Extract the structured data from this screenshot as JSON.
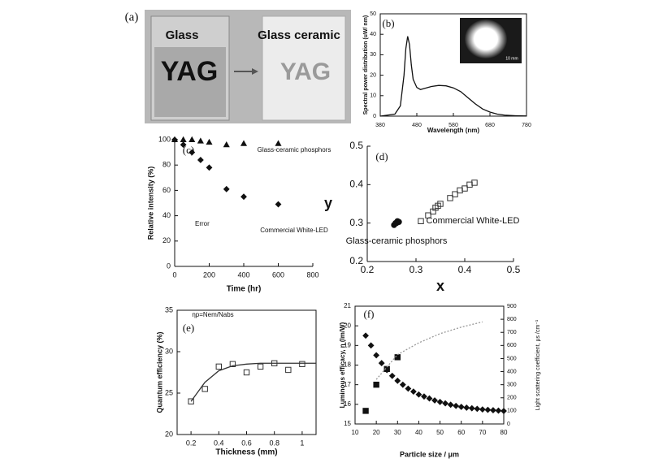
{
  "photo": {
    "label": "(a)",
    "left_caption": "Glass",
    "left_text": "YAG",
    "right_caption": "Glass ceramic",
    "right_text": "YAG"
  },
  "chart_data": [
    {
      "type": "line",
      "title": "(b)",
      "xlabel": "Wavelength (nm)",
      "ylabel": "Spectral power distribution (uW/ nm)",
      "inset_label": "10 mm",
      "xlim": [
        380,
        780
      ],
      "xticks": [
        380,
        480,
        580,
        680,
        780
      ],
      "ylim": [
        0,
        50
      ],
      "yticks": [
        0,
        10,
        20,
        30,
        40,
        50
      ],
      "x": [
        380,
        420,
        435,
        445,
        450,
        455,
        460,
        465,
        470,
        480,
        490,
        500,
        520,
        540,
        560,
        580,
        600,
        620,
        640,
        660,
        680,
        700,
        720,
        750,
        780
      ],
      "series": [
        {
          "color": "#111111",
          "values": [
            0,
            1,
            5,
            20,
            33,
            39,
            35,
            25,
            18,
            14,
            13,
            13.5,
            14.5,
            15,
            14.8,
            13.8,
            12,
            9,
            6,
            3.5,
            2,
            1,
            0.5,
            0.2,
            0.1
          ]
        }
      ]
    },
    {
      "type": "scatter",
      "title": "(c)",
      "xlabel": "Time (hr)",
      "ylabel": "Relative intensity (%)",
      "annotations": [
        "Glass-ceramic phosphors",
        "Commercial White-LED",
        "Error"
      ],
      "xlim": [
        0,
        800
      ],
      "xticks": [
        0,
        200,
        400,
        600,
        800
      ],
      "ylim": [
        0,
        100
      ],
      "yticks": [
        0,
        20,
        40,
        60,
        80,
        100
      ],
      "x": [
        0,
        50,
        100,
        150,
        200,
        300,
        400,
        600
      ],
      "series": [
        {
          "marker": "triangle",
          "color": "#111111",
          "values": [
            100,
            100,
            100,
            99,
            98,
            96,
            97,
            97
          ]
        },
        {
          "marker": "diamond",
          "color": "#111111",
          "values": [
            100,
            96,
            90,
            84,
            78,
            61,
            55,
            49
          ]
        }
      ]
    },
    {
      "type": "scatter",
      "title": "(d)",
      "xlabel": "x",
      "ylabel": "y",
      "annotations": [
        "Glass-ceramic phosphors",
        "Commercial White-LED"
      ],
      "xlim": [
        0.2,
        0.5
      ],
      "xticks": [
        0.2,
        0.3,
        0.4,
        0.5
      ],
      "ylim": [
        0.2,
        0.5
      ],
      "yticks": [
        0.2,
        0.3,
        0.4,
        0.5
      ],
      "series": [
        {
          "marker": "circle",
          "color": "#111111",
          "x": [
            0.255,
            0.26,
            0.262,
            0.258,
            0.265
          ],
          "values": [
            0.295,
            0.3,
            0.305,
            0.3,
            0.303
          ]
        },
        {
          "marker": "square",
          "open": true,
          "color": "#333333",
          "x": [
            0.31,
            0.325,
            0.335,
            0.34,
            0.345,
            0.35,
            0.37,
            0.38,
            0.39,
            0.4,
            0.41,
            0.42
          ],
          "values": [
            0.305,
            0.32,
            0.33,
            0.34,
            0.345,
            0.35,
            0.365,
            0.375,
            0.385,
            0.39,
            0.4,
            0.405
          ]
        }
      ]
    },
    {
      "type": "scatter",
      "title": "(e)",
      "xlabel": "Thickness (mm)",
      "ylabel": "Quantum efficiency (%)",
      "annotations": [
        "ηp=Nem/Nabs"
      ],
      "xlim": [
        0.1,
        1.1
      ],
      "xticks": [
        0.2,
        0.4,
        0.6,
        0.8,
        1.0
      ],
      "ylim": [
        20,
        35
      ],
      "yticks": [
        20,
        25,
        30,
        35
      ],
      "series": [
        {
          "marker": "square",
          "open": true,
          "color": "#333333",
          "x": [
            0.2,
            0.3,
            0.4,
            0.5,
            0.6,
            0.7,
            0.8,
            0.9,
            1.0
          ],
          "values": [
            24,
            25.5,
            28.2,
            28.5,
            27.5,
            28.2,
            28.6,
            27.8,
            28.5
          ]
        },
        {
          "type": "line",
          "color": "#333333",
          "x": [
            0.2,
            0.3,
            0.4,
            0.5,
            0.6,
            0.7,
            0.8,
            0.9,
            1.0,
            1.1
          ],
          "values": [
            24,
            26.3,
            27.7,
            28.3,
            28.5,
            28.6,
            28.6,
            28.6,
            28.6,
            28.6
          ]
        }
      ]
    },
    {
      "type": "scatter",
      "title": "(f)",
      "xlabel": "Particle size / μm",
      "ylabel": "Luminous efficacy, η (lm/W)",
      "y2label": "Light scattering coefficient, μs /cm⁻¹",
      "xlim": [
        10,
        80
      ],
      "xticks": [
        10,
        20,
        30,
        40,
        50,
        60,
        70,
        80
      ],
      "ylim": [
        15,
        21
      ],
      "yticks": [
        15,
        16,
        17,
        18,
        19,
        20,
        21
      ],
      "y2lim": [
        0,
        900
      ],
      "y2ticks": [
        0,
        100,
        200,
        300,
        400,
        500,
        600,
        700,
        800,
        900
      ],
      "series": [
        {
          "marker": "diamond",
          "color": "#111111",
          "x": [
            15,
            17.5,
            20,
            22.5,
            25,
            27.5,
            30,
            32.5,
            35,
            37.5,
            40,
            42.5,
            45,
            47.5,
            50,
            52.5,
            55,
            57.5,
            60,
            62.5,
            65,
            67.5,
            70,
            72.5,
            75,
            77.5,
            80
          ],
          "values": [
            19.5,
            19.0,
            18.5,
            18.1,
            17.75,
            17.45,
            17.2,
            17.0,
            16.8,
            16.65,
            16.5,
            16.4,
            16.3,
            16.2,
            16.12,
            16.05,
            15.98,
            15.92,
            15.87,
            15.83,
            15.8,
            15.77,
            15.74,
            15.72,
            15.7,
            15.68,
            15.66
          ]
        },
        {
          "marker": "square",
          "color": "#111111",
          "axis": "y2",
          "x": [
            15,
            20,
            25,
            30
          ],
          "values": [
            100,
            300,
            420,
            510
          ]
        },
        {
          "type": "line",
          "dash": true,
          "color": "#999999",
          "axis": "y2",
          "x": [
            20,
            30,
            40,
            50,
            60,
            70
          ],
          "values": [
            340,
            530,
            620,
            690,
            740,
            780
          ]
        }
      ]
    }
  ]
}
